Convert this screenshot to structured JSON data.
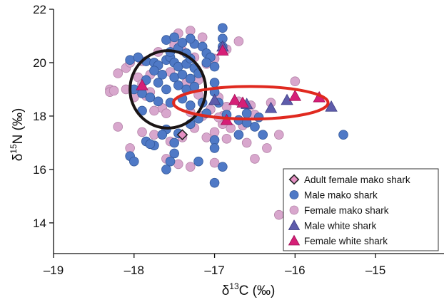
{
  "chart_data": {
    "type": "scatter",
    "title": "",
    "xlabel": {
      "prefix": "δ",
      "sup": "13",
      "suffix": "C (‰)"
    },
    "ylabel": {
      "prefix": "δ",
      "sup": "15",
      "suffix": "N (‰)"
    },
    "xlim": [
      -19,
      -14.15
    ],
    "ylim": [
      12.85,
      22
    ],
    "xticks": [
      -19,
      -18,
      -17,
      -16,
      -15
    ],
    "xtick_labels": [
      "–19",
      "–18",
      "–17",
      "–16",
      "–15"
    ],
    "yticks": [
      14,
      16,
      18,
      20,
      22
    ],
    "ytick_labels": [
      "14",
      "16",
      "18",
      "20",
      "22"
    ],
    "grid": false,
    "legend_position": "bottom-right",
    "colors": {
      "male_mako": "#4f79c6",
      "female_mako": "#d8a7cd",
      "adult_female_mako": "#e58fc3",
      "male_white": "#5e5cab",
      "female_white": "#d61f77",
      "black_ellipse": "#1a1414",
      "red_ellipse": "#e0291f"
    },
    "series": [
      {
        "name": "Adult female mako shark",
        "marker": "diamond",
        "points": [
          [
            -17.4,
            17.3
          ]
        ]
      },
      {
        "name": "Male mako shark",
        "marker": "circle",
        "points": [
          [
            -18.05,
            20.1
          ],
          [
            -17.95,
            20.2
          ],
          [
            -17.85,
            20.05
          ],
          [
            -17.75,
            20.0
          ],
          [
            -17.7,
            19.9
          ],
          [
            -17.6,
            20.1
          ],
          [
            -17.55,
            20.2
          ],
          [
            -17.5,
            20.0
          ],
          [
            -17.45,
            19.85
          ],
          [
            -17.35,
            19.95
          ],
          [
            -17.3,
            20.15
          ],
          [
            -17.25,
            19.8
          ],
          [
            -17.2,
            19.6
          ],
          [
            -17.75,
            19.7
          ],
          [
            -17.65,
            19.55
          ],
          [
            -17.5,
            19.45
          ],
          [
            -17.4,
            19.55
          ],
          [
            -17.3,
            19.4
          ],
          [
            -17.85,
            19.35
          ],
          [
            -17.7,
            19.25
          ],
          [
            -17.6,
            19.0
          ],
          [
            -17.45,
            19.15
          ],
          [
            -17.35,
            19.0
          ],
          [
            -17.25,
            19.1
          ],
          [
            -18.0,
            19.0
          ],
          [
            -17.9,
            18.85
          ],
          [
            -17.8,
            18.7
          ],
          [
            -17.7,
            18.55
          ],
          [
            -17.55,
            18.5
          ],
          [
            -17.4,
            18.65
          ],
          [
            -17.3,
            18.4
          ],
          [
            -17.15,
            18.5
          ],
          [
            -17.55,
            20.4
          ],
          [
            -17.45,
            20.55
          ],
          [
            -17.35,
            20.35
          ],
          [
            -17.25,
            20.7
          ],
          [
            -17.6,
            20.85
          ],
          [
            -17.5,
            20.95
          ],
          [
            -17.4,
            20.75
          ],
          [
            -17.3,
            20.9
          ],
          [
            -17.15,
            20.6
          ],
          [
            -17.1,
            20.35
          ],
          [
            -17.05,
            20.2
          ],
          [
            -17.1,
            20.0
          ],
          [
            -17.0,
            19.85
          ],
          [
            -16.9,
            21.3
          ],
          [
            -16.9,
            20.9
          ],
          [
            -16.9,
            20.6
          ],
          [
            -17.0,
            19.25
          ],
          [
            -17.0,
            18.9
          ],
          [
            -16.95,
            18.5
          ],
          [
            -17.1,
            18.1
          ],
          [
            -16.85,
            18.05
          ],
          [
            -16.7,
            17.85
          ],
          [
            -16.6,
            17.75
          ],
          [
            -16.5,
            17.6
          ],
          [
            -16.45,
            17.95
          ],
          [
            -16.6,
            18.1
          ],
          [
            -16.4,
            17.3
          ],
          [
            -16.7,
            17.3
          ],
          [
            -17.2,
            17.9
          ],
          [
            -17.3,
            17.7
          ],
          [
            -17.6,
            17.5
          ],
          [
            -17.45,
            17.35
          ],
          [
            -17.5,
            17.0
          ],
          [
            -17.5,
            16.6
          ],
          [
            -17.55,
            16.3
          ],
          [
            -17.6,
            16.0
          ],
          [
            -17.2,
            16.3
          ],
          [
            -17.0,
            17.1
          ],
          [
            -17.0,
            16.8
          ],
          [
            -16.9,
            16.1
          ],
          [
            -17.0,
            15.5
          ],
          [
            -17.85,
            17.05
          ],
          [
            -17.75,
            16.9
          ],
          [
            -18.05,
            16.5
          ],
          [
            -18.0,
            16.3
          ],
          [
            -17.9,
            18.2
          ],
          [
            -17.8,
            16.95
          ],
          [
            -15.4,
            17.3
          ],
          [
            -17.65,
            17.3
          ]
        ]
      },
      {
        "name": "Female mako shark",
        "marker": "circle",
        "points": [
          [
            -18.3,
            19.0
          ],
          [
            -18.3,
            18.9
          ],
          [
            -18.2,
            19.6
          ],
          [
            -18.1,
            19.8
          ],
          [
            -17.95,
            19.45
          ],
          [
            -17.9,
            19.2
          ],
          [
            -17.85,
            18.75
          ],
          [
            -17.8,
            18.9
          ],
          [
            -18.1,
            19.0
          ],
          [
            -18.0,
            18.7
          ],
          [
            -18.2,
            17.6
          ],
          [
            -18.05,
            16.8
          ],
          [
            -17.9,
            17.4
          ],
          [
            -17.75,
            17.3
          ],
          [
            -17.55,
            17.05
          ],
          [
            -17.4,
            17.2
          ],
          [
            -17.25,
            17.55
          ],
          [
            -17.15,
            18.0
          ],
          [
            -17.05,
            18.25
          ],
          [
            -16.95,
            18.7
          ],
          [
            -16.85,
            18.35
          ],
          [
            -16.7,
            18.55
          ],
          [
            -16.55,
            18.4
          ],
          [
            -16.5,
            18.05
          ],
          [
            -16.65,
            17.65
          ],
          [
            -16.8,
            17.55
          ],
          [
            -16.9,
            17.7
          ],
          [
            -16.9,
            18.0
          ],
          [
            -16.6,
            17.0
          ],
          [
            -16.5,
            16.4
          ],
          [
            -16.35,
            16.8
          ],
          [
            -16.2,
            17.3
          ],
          [
            -16.3,
            18.5
          ],
          [
            -16.0,
            19.3
          ],
          [
            -16.2,
            14.3
          ],
          [
            -17.3,
            16.1
          ],
          [
            -17.45,
            16.2
          ],
          [
            -17.6,
            16.4
          ],
          [
            -17.0,
            16.25
          ],
          [
            -17.0,
            17.4
          ],
          [
            -17.3,
            21.2
          ],
          [
            -17.45,
            21.1
          ],
          [
            -17.15,
            20.95
          ],
          [
            -16.7,
            20.8
          ],
          [
            -17.25,
            20.2
          ],
          [
            -17.1,
            19.95
          ],
          [
            -17.0,
            20.15
          ],
          [
            -17.55,
            19.65
          ],
          [
            -17.8,
            19.55
          ],
          [
            -17.35,
            19.25
          ],
          [
            -17.2,
            18.8
          ],
          [
            -17.65,
            18.3
          ],
          [
            -18.05,
            20.0
          ],
          [
            -17.7,
            20.4
          ],
          [
            -17.4,
            20.45
          ],
          [
            -17.6,
            18.1
          ],
          [
            -17.3,
            18.15
          ],
          [
            -17.1,
            17.2
          ],
          [
            -16.85,
            17.15
          ],
          [
            -16.95,
            17.95
          ],
          [
            -17.9,
            20.05
          ],
          [
            -17.5,
            20.65
          ],
          [
            -17.2,
            19.35
          ],
          [
            -16.85,
            20.5
          ],
          [
            -17.75,
            18.2
          ],
          [
            -18.25,
            18.95
          ]
        ]
      },
      {
        "name": "Male white shark",
        "marker": "triangle",
        "points": [
          [
            -17.0,
            18.6
          ],
          [
            -16.6,
            18.45
          ],
          [
            -16.3,
            18.3
          ],
          [
            -16.1,
            18.6
          ],
          [
            -15.55,
            18.35
          ],
          [
            -16.9,
            20.6
          ]
        ]
      },
      {
        "name": "Female white shark",
        "marker": "triangle",
        "points": [
          [
            -17.9,
            19.15
          ],
          [
            -16.9,
            20.45
          ],
          [
            -16.75,
            18.6
          ],
          [
            -16.65,
            18.5
          ],
          [
            -16.0,
            18.75
          ],
          [
            -15.7,
            18.7
          ],
          [
            -16.85,
            17.85
          ]
        ]
      }
    ],
    "ellipses": [
      {
        "color_key": "black_ellipse",
        "cx": -17.58,
        "cy": 19.0,
        "rx": 0.47,
        "ry": 1.45
      },
      {
        "color_key": "red_ellipse",
        "cx": -16.55,
        "cy": 18.5,
        "rx": 0.96,
        "ry": 0.61
      }
    ]
  }
}
